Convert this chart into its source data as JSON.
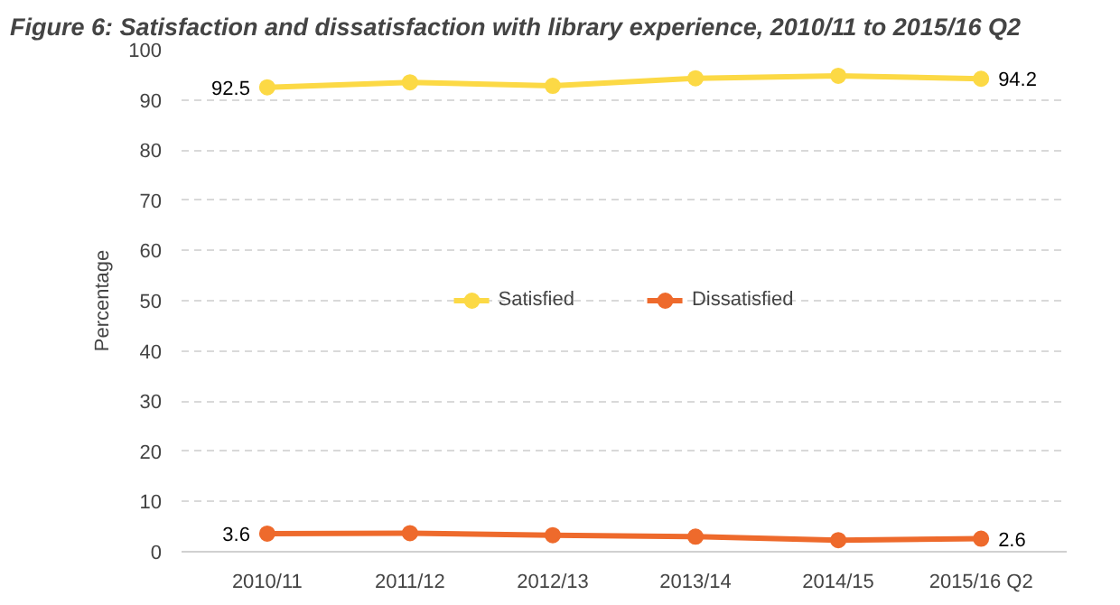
{
  "chart_data": {
    "type": "line",
    "title": "Figure 6: Satisfaction and dissatisfaction with library experience, 2010/11 to 2015/16 Q2",
    "ylabel": "Percentage",
    "categories": [
      "2010/11",
      "2011/12",
      "2012/13",
      "2013/14",
      "2014/15",
      "2015/16 Q2"
    ],
    "series": [
      {
        "name": "Satisfied",
        "color": "#fcd945",
        "values": [
          92.5,
          93.5,
          92.8,
          94.3,
          94.8,
          94.2
        ],
        "value_labels": [
          "92.5",
          null,
          null,
          null,
          null,
          "94.2"
        ]
      },
      {
        "name": "Dissatisfied",
        "color": "#ee6a2c",
        "values": [
          3.6,
          3.7,
          3.3,
          3.0,
          2.3,
          2.6
        ],
        "value_labels": [
          "3.6",
          null,
          null,
          null,
          null,
          "2.6"
        ]
      }
    ],
    "ylim": [
      0,
      100
    ],
    "yticks": [
      0,
      10,
      20,
      30,
      40,
      50,
      60,
      70,
      80,
      90,
      100
    ],
    "grid": "y",
    "legend": "center",
    "marker": "circle",
    "line_style": "solid"
  }
}
